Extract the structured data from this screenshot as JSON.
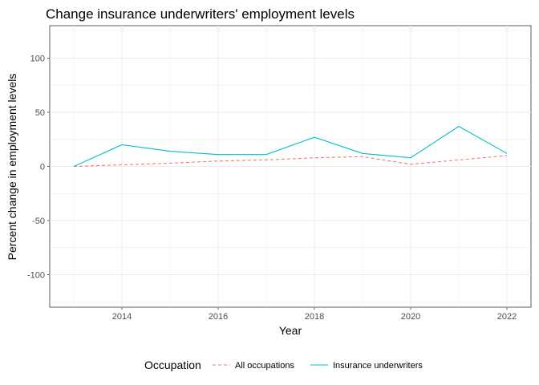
{
  "chart_data": {
    "type": "line",
    "title": "Change insurance underwriters' employment levels",
    "xlabel": "Year",
    "ylabel": "Percent change in employment levels",
    "x": [
      2013,
      2014,
      2015,
      2016,
      2017,
      2018,
      2019,
      2020,
      2021,
      2022
    ],
    "xlim": [
      2012.5,
      2022.5
    ],
    "ylim": [
      -130,
      130
    ],
    "x_ticks": [
      2014,
      2016,
      2018,
      2020,
      2022
    ],
    "y_ticks": [
      -100,
      -50,
      0,
      50,
      100
    ],
    "grid": true,
    "legend": {
      "title": "Occupation",
      "position": "bottom"
    },
    "series": [
      {
        "name": "All occupations",
        "color": "#F8766D",
        "line_style": "dashed",
        "values": [
          0,
          1.5,
          3,
          5,
          6,
          8,
          9,
          2,
          6,
          10
        ]
      },
      {
        "name": "Insurance underwriters",
        "color": "#00BFC4",
        "line_style": "solid",
        "values": [
          0,
          20,
          14,
          11,
          11,
          27,
          12,
          8,
          37,
          12
        ]
      }
    ]
  }
}
